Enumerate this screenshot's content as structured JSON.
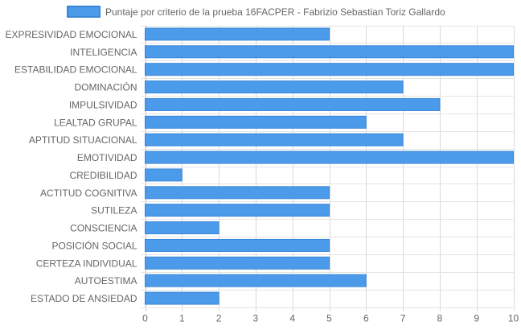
{
  "chart_data": {
    "type": "bar",
    "orientation": "horizontal",
    "categories": [
      "EXPRESIVIDAD EMOCIONAL",
      "INTELIGENCIA",
      "ESTABILIDAD EMOCIONAL",
      "DOMINACIÓN",
      "IMPULSIVIDAD",
      "LEALTAD GRUPAL",
      "APTITUD SITUACIONAL",
      "EMOTIVIDAD",
      "CREDIBILIDAD",
      "ACTITUD COGNITIVA",
      "SUTILEZA",
      "CONSCIENCIA",
      "POSICIÓN SOCIAL",
      "CERTEZA INDIVIDUAL",
      "AUTOESTIMA",
      "ESTADO DE ANSIEDAD"
    ],
    "series": [
      {
        "name": "Puntaje por criterio de la prueba 16FACPER - Fabrizio Sebastian Toriz Gallardo",
        "values": [
          5,
          10,
          10,
          7,
          8,
          6,
          7,
          10,
          1,
          5,
          5,
          2,
          5,
          5,
          6,
          2
        ],
        "color": "#4c9beb",
        "border_color": "#3a86d8"
      }
    ],
    "x_ticks": [
      "0",
      "1",
      "2",
      "3",
      "4",
      "5",
      "6",
      "7",
      "8",
      "9",
      "10"
    ],
    "xlim": [
      0,
      10
    ],
    "grid": true,
    "legend_position": "top"
  }
}
